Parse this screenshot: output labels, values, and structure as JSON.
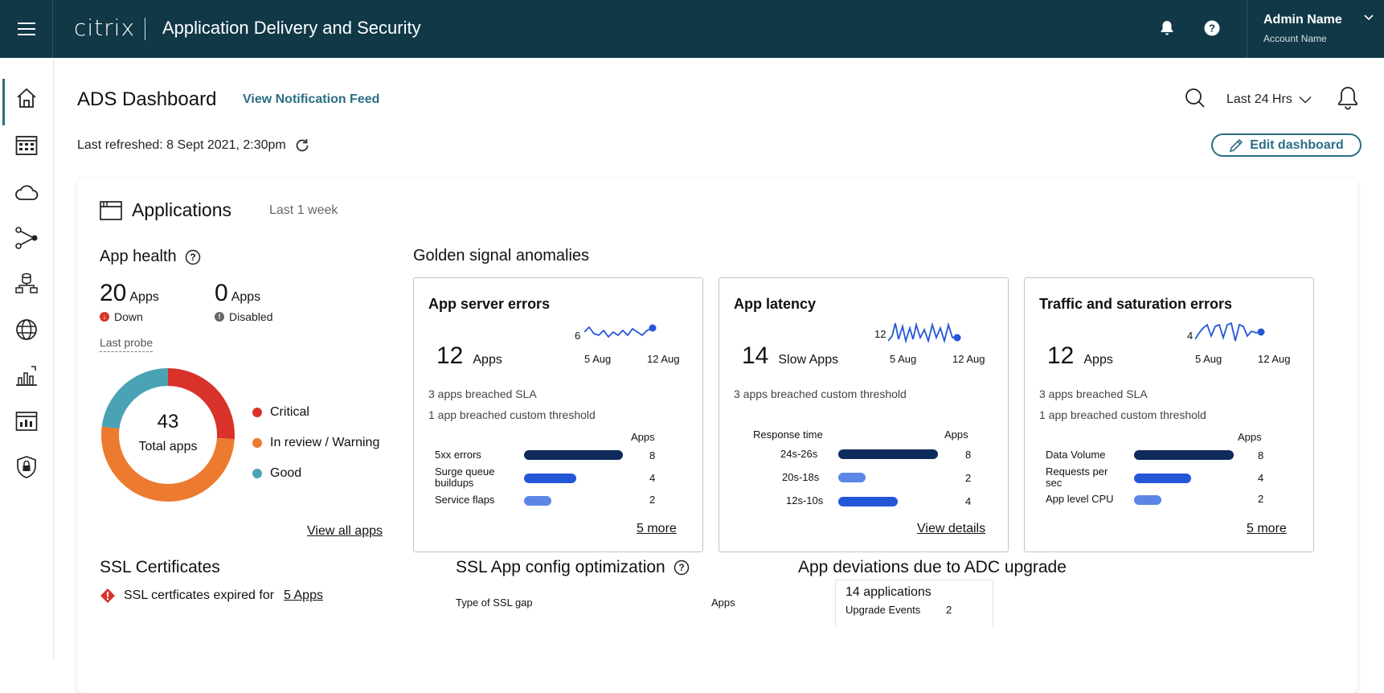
{
  "topbar": {
    "brand": "citrix",
    "product": "Application Delivery and Security",
    "user_name": "Admin Name",
    "account_name": "Account Name"
  },
  "page": {
    "title": "ADS Dashboard",
    "notification_link": "View Notification Feed",
    "last_refreshed": "Last refreshed: 8 Sept 2021, 2:30pm",
    "time_range": "Last 24 Hrs",
    "edit_label": "Edit dashboard"
  },
  "applications": {
    "title": "Applications",
    "period": "Last 1 week",
    "app_health": {
      "title": "App health",
      "down_count": "20",
      "down_unit": "Apps",
      "down_label": "Down",
      "disabled_count": "0",
      "disabled_unit": "Apps",
      "disabled_label": "Disabled",
      "last_probe": "Last probe",
      "total": "43",
      "total_label": "Total apps",
      "legend": [
        {
          "label": "Critical",
          "color": "#d8322b"
        },
        {
          "label": "In review / Warning",
          "color": "#ec7a2f"
        },
        {
          "label": "Good",
          "color": "#4aa3b5"
        }
      ],
      "donut_fractions": {
        "critical": 0.26,
        "warning": 0.51,
        "good": 0.23
      },
      "view_all": "View all apps"
    },
    "golden_signals": {
      "title": "Golden signal anomalies",
      "cards": [
        {
          "title": "App server errors",
          "count": "12",
          "unit": "Apps",
          "spark_value": "6",
          "spark_start": "5 Aug",
          "spark_end": "12 Aug",
          "notes": [
            "3 apps breached SLA",
            "1 app breached custom threshold"
          ],
          "col_label": "",
          "col_value": "Apps",
          "rows": [
            {
              "label": "5xx errors",
              "value": "8",
              "pct": 1.0
            },
            {
              "label": "Surge queue buildups",
              "value": "4",
              "pct": 0.53
            },
            {
              "label": "Service flaps",
              "value": "2",
              "pct": 0.28
            }
          ],
          "link": "5 more"
        },
        {
          "title": "App latency",
          "count": "14",
          "unit": "Slow Apps",
          "spark_value": "12",
          "spark_start": "5 Aug",
          "spark_end": "12 Aug",
          "notes": [
            "3 apps breached custom threshold"
          ],
          "col_label": "Response time",
          "col_value": "Apps",
          "rows": [
            {
              "label": "24s-26s",
              "value": "8",
              "pct": 1.0
            },
            {
              "label": "20s-18s",
              "value": "2",
              "pct": 0.28
            },
            {
              "label": "12s-10s",
              "value": "4",
              "pct": 0.6
            }
          ],
          "link": "View details"
        },
        {
          "title": "Traffic and saturation errors",
          "count": "12",
          "unit": "Apps",
          "spark_value": "4",
          "spark_start": "5 Aug",
          "spark_end": "12 Aug",
          "notes": [
            "3 apps breached SLA",
            "1 app breached custom threshold"
          ],
          "col_label": "",
          "col_value": "Apps",
          "rows": [
            {
              "label": "Data Volume",
              "value": "8",
              "pct": 1.0
            },
            {
              "label": "Requests per sec",
              "value": "4",
              "pct": 0.58
            },
            {
              "label": "App level CPU",
              "value": "2",
              "pct": 0.28
            }
          ],
          "link": "5 more"
        }
      ]
    },
    "ssl_certs": {
      "title": "SSL Certificates",
      "expired_text": "SSL certficates expired for",
      "expired_link": "5 Apps"
    },
    "ssl_opt": {
      "title": "SSL App config optimization",
      "col_label": "Type of SSL gap",
      "col_value": "Apps"
    },
    "deviations": {
      "title": "App deviations due to ADC upgrade",
      "box_title": "14 applications",
      "rows": [
        {
          "label": "Upgrade Events",
          "value": "2"
        }
      ]
    }
  },
  "colors": {
    "topbar": "#113847",
    "accent": "#2a6e84",
    "bar_dark": "#0f2b5b",
    "bar_mid": "#2456d8",
    "bar_light": "#5b86e5"
  }
}
